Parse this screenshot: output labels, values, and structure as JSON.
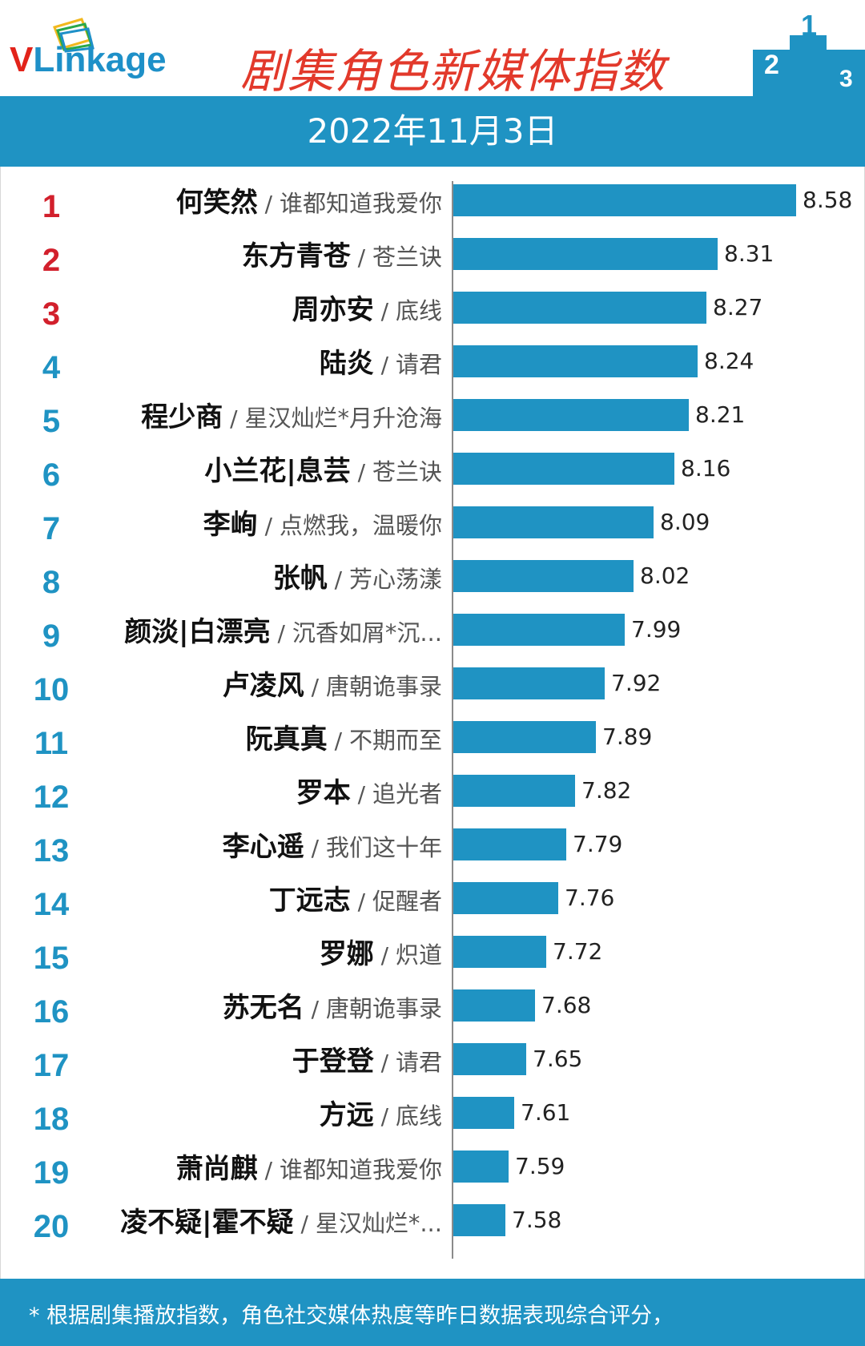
{
  "header": {
    "logo_v": "V",
    "logo_rest": "Linkage",
    "title": "剧集角色新媒体指数"
  },
  "date": "2022年11月3日",
  "footer": {
    "note": "* 根据剧集播放指数，角色社交媒体热度等昨日数据表现综合评分，"
  },
  "colors": {
    "accent": "#1f93c3",
    "title_red": "#e2392b",
    "rank_red": "#d2202c"
  },
  "chart_data": {
    "type": "bar",
    "orientation": "horizontal",
    "title": "剧集角色新媒体指数",
    "subtitle": "2022年11月3日",
    "series": [
      {
        "name": "新媒体指数",
        "items": [
          {
            "rank": "1",
            "name": "何笑然",
            "show": "谁都知道我爱你",
            "value": 8.58
          },
          {
            "rank": "2",
            "name": "东方青苍",
            "show": "苍兰诀",
            "value": 8.31
          },
          {
            "rank": "3",
            "name": "周亦安",
            "show": "底线",
            "value": 8.27
          },
          {
            "rank": "4",
            "name": "陆炎",
            "show": "请君",
            "value": 8.24
          },
          {
            "rank": "5",
            "name": "程少商",
            "show": "星汉灿烂*月升沧海",
            "value": 8.21
          },
          {
            "rank": "6",
            "name": "小兰花|息芸",
            "show": "苍兰诀",
            "value": 8.16
          },
          {
            "rank": "7",
            "name": "李峋",
            "show": "点燃我，温暖你",
            "value": 8.09
          },
          {
            "rank": "8",
            "name": "张帆",
            "show": "芳心荡漾",
            "value": 8.02
          },
          {
            "rank": "9",
            "name": "颜淡|白漂亮",
            "show": "沉香如屑*沉...",
            "value": 7.99
          },
          {
            "rank": "10",
            "name": "卢凌风",
            "show": "唐朝诡事录",
            "value": 7.92
          },
          {
            "rank": "11",
            "name": "阮真真",
            "show": "不期而至",
            "value": 7.89
          },
          {
            "rank": "12",
            "name": "罗本",
            "show": "追光者",
            "value": 7.82
          },
          {
            "rank": "13",
            "name": "李心遥",
            "show": "我们这十年",
            "value": 7.79
          },
          {
            "rank": "14",
            "name": "丁远志",
            "show": "促醒者",
            "value": 7.76
          },
          {
            "rank": "15",
            "name": "罗娜",
            "show": "炽道",
            "value": 7.72
          },
          {
            "rank": "16",
            "name": "苏无名",
            "show": "唐朝诡事录",
            "value": 7.68
          },
          {
            "rank": "17",
            "name": "于登登",
            "show": "请君",
            "value": 7.65
          },
          {
            "rank": "18",
            "name": "方远",
            "show": "底线",
            "value": 7.61
          },
          {
            "rank": "19",
            "name": "萧尚麒",
            "show": "谁都知道我爱你",
            "value": 7.59
          },
          {
            "rank": "20",
            "name": "凌不疑|霍不疑",
            "show": "星汉灿烂*...",
            "value": 7.58
          }
        ]
      }
    ],
    "xlim": [
      7.4,
      8.58
    ],
    "grid": false,
    "legend": "none"
  }
}
